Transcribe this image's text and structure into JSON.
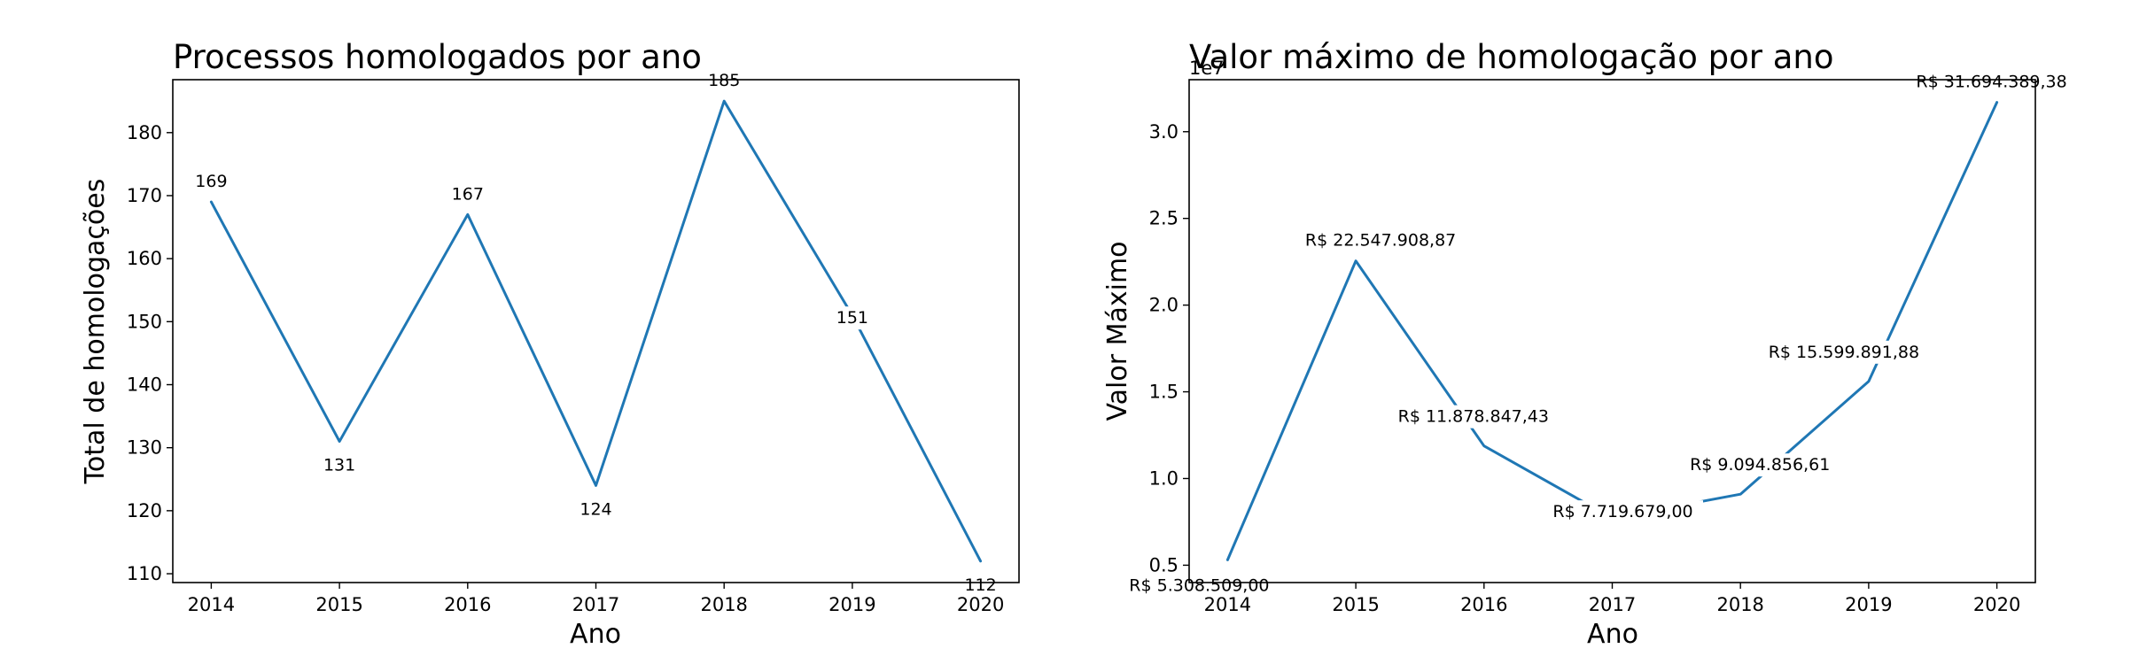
{
  "chart_data": [
    {
      "type": "line",
      "title": "Processos homologados por ano",
      "xlabel": "Ano",
      "ylabel": "Total de homologações",
      "x": [
        2014,
        2015,
        2016,
        2017,
        2018,
        2019,
        2020
      ],
      "x_ticks": [
        "2014",
        "2015",
        "2016",
        "2017",
        "2018",
        "2019",
        "2020"
      ],
      "y_ticks": [
        "110",
        "120",
        "130",
        "140",
        "150",
        "160",
        "170",
        "180"
      ],
      "y_tick_values": [
        110,
        120,
        130,
        140,
        150,
        160,
        170,
        180
      ],
      "ylim": [
        108.6,
        188.4
      ],
      "xlim": [
        2013.7,
        2020.3
      ],
      "series": [
        {
          "values": [
            169,
            131,
            167,
            124,
            185,
            151,
            112
          ],
          "color": "#1f77b4"
        }
      ],
      "data_labels": [
        "169",
        "131",
        "167",
        "124",
        "185",
        "151",
        "112"
      ],
      "grid": false,
      "legend": "none"
    },
    {
      "type": "line",
      "title": "Valor máximo de homologação por ano",
      "xlabel": "Ano",
      "ylabel": "Valor Máximo",
      "offset_label": "1e7",
      "x": [
        2014,
        2015,
        2016,
        2017,
        2018,
        2019,
        2020
      ],
      "x_ticks": [
        "2014",
        "2015",
        "2016",
        "2017",
        "2018",
        "2019",
        "2020"
      ],
      "y_ticks": [
        "0.5",
        "1.0",
        "1.5",
        "2.0",
        "2.5",
        "3.0"
      ],
      "y_tick_values": [
        5000000,
        10000000,
        15000000,
        20000000,
        25000000,
        30000000
      ],
      "ylim": [
        4000000,
        33000000
      ],
      "xlim": [
        2013.7,
        2020.3
      ],
      "series": [
        {
          "values": [
            5308509.0,
            22547908.87,
            11878847.43,
            7719679.0,
            9094856.61,
            15599891.88,
            31694389.38
          ],
          "color": "#1f77b4"
        }
      ],
      "data_labels": [
        "R$ 5.308.509,00",
        "R$ 22.547.908,87",
        "R$ 11.878.847,43",
        "R$ 7.719.679,00",
        "R$ 9.094.856,61",
        "R$ 15.599.891,88",
        "R$ 31.694.389,38"
      ],
      "grid": false,
      "legend": "none"
    }
  ]
}
